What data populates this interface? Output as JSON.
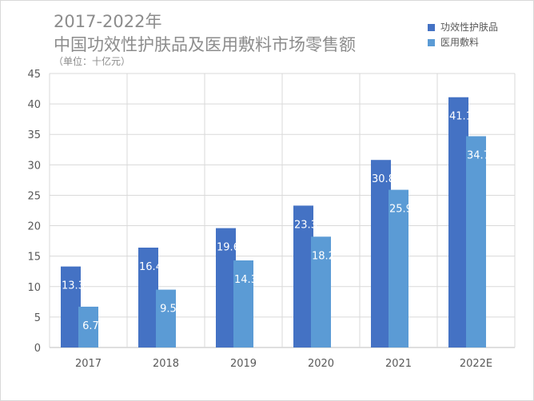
{
  "chart_data": {
    "type": "bar",
    "title": "2017-2022年",
    "subtitle": "中国功效性护肤品及医用敷料市场零售额",
    "unit": "（单位：十亿元）",
    "categories": [
      "2017",
      "2018",
      "2019",
      "2020",
      "2021",
      "2022E"
    ],
    "series": [
      {
        "name": "功效性护肤品",
        "color": "#4472c4",
        "values": [
          13.3,
          16.4,
          19.6,
          23.3,
          30.8,
          41.1
        ],
        "labels": [
          "13.3",
          "16.4",
          "19.6",
          "23.3",
          "30.8",
          "41.1"
        ]
      },
      {
        "name": "医用敷料",
        "color": "#5b9bd5",
        "values": [
          6.7,
          9.5,
          14.3,
          18.2,
          25.9,
          34.7
        ],
        "labels": [
          "6.7",
          "9.5",
          "14.3",
          "18.2",
          "25.9",
          "34.7"
        ]
      }
    ],
    "ylim": [
      0,
      45
    ],
    "yticks": [
      "0",
      "5",
      "10",
      "15",
      "20",
      "25",
      "30",
      "35",
      "40",
      "45"
    ],
    "grid": true,
    "legend_position": "top-right"
  }
}
